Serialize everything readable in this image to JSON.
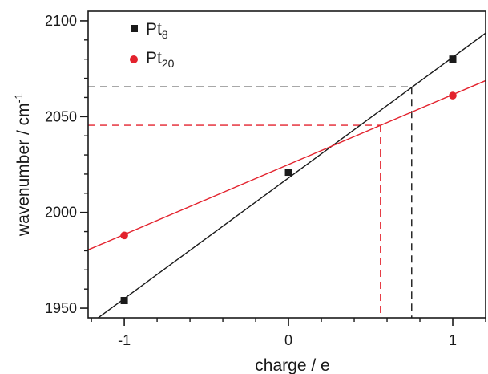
{
  "chart_data": {
    "type": "scatter",
    "title": "",
    "xlabel": "charge / e",
    "ylabel": "wavenumber / cm",
    "ylabel_sup": "-1",
    "xlim": [
      -1.22,
      1.2
    ],
    "ylim": [
      1945,
      2105
    ],
    "x_ticks": [
      -1,
      0,
      1
    ],
    "x_tick_labels": [
      "-1",
      "0",
      "1"
    ],
    "x_minor_step": 0.2,
    "y_ticks": [
      1950,
      2000,
      2050,
      2100
    ],
    "y_tick_labels": [
      "1950",
      "2000",
      "2050",
      "2100"
    ],
    "y_minor_step": 10,
    "grid": false,
    "legend_position": "top-left",
    "series": [
      {
        "base": "Pt",
        "sub": "8",
        "color": "#1a1a1a",
        "marker": "square",
        "x": [
          -1,
          0,
          1
        ],
        "y": [
          1954,
          2021,
          2080
        ],
        "fit": {
          "slope": 63,
          "intercept": 2018
        },
        "ref_x": 0.75,
        "ref_y": 2065.5
      },
      {
        "base": "Pt",
        "sub": "20",
        "color": "#e3222d",
        "marker": "circle",
        "x": [
          -1,
          1
        ],
        "y": [
          1988,
          2061
        ],
        "fit": {
          "slope": 36.5,
          "intercept": 2025
        },
        "ref_x": 0.56,
        "ref_y": 2045.5
      }
    ]
  }
}
